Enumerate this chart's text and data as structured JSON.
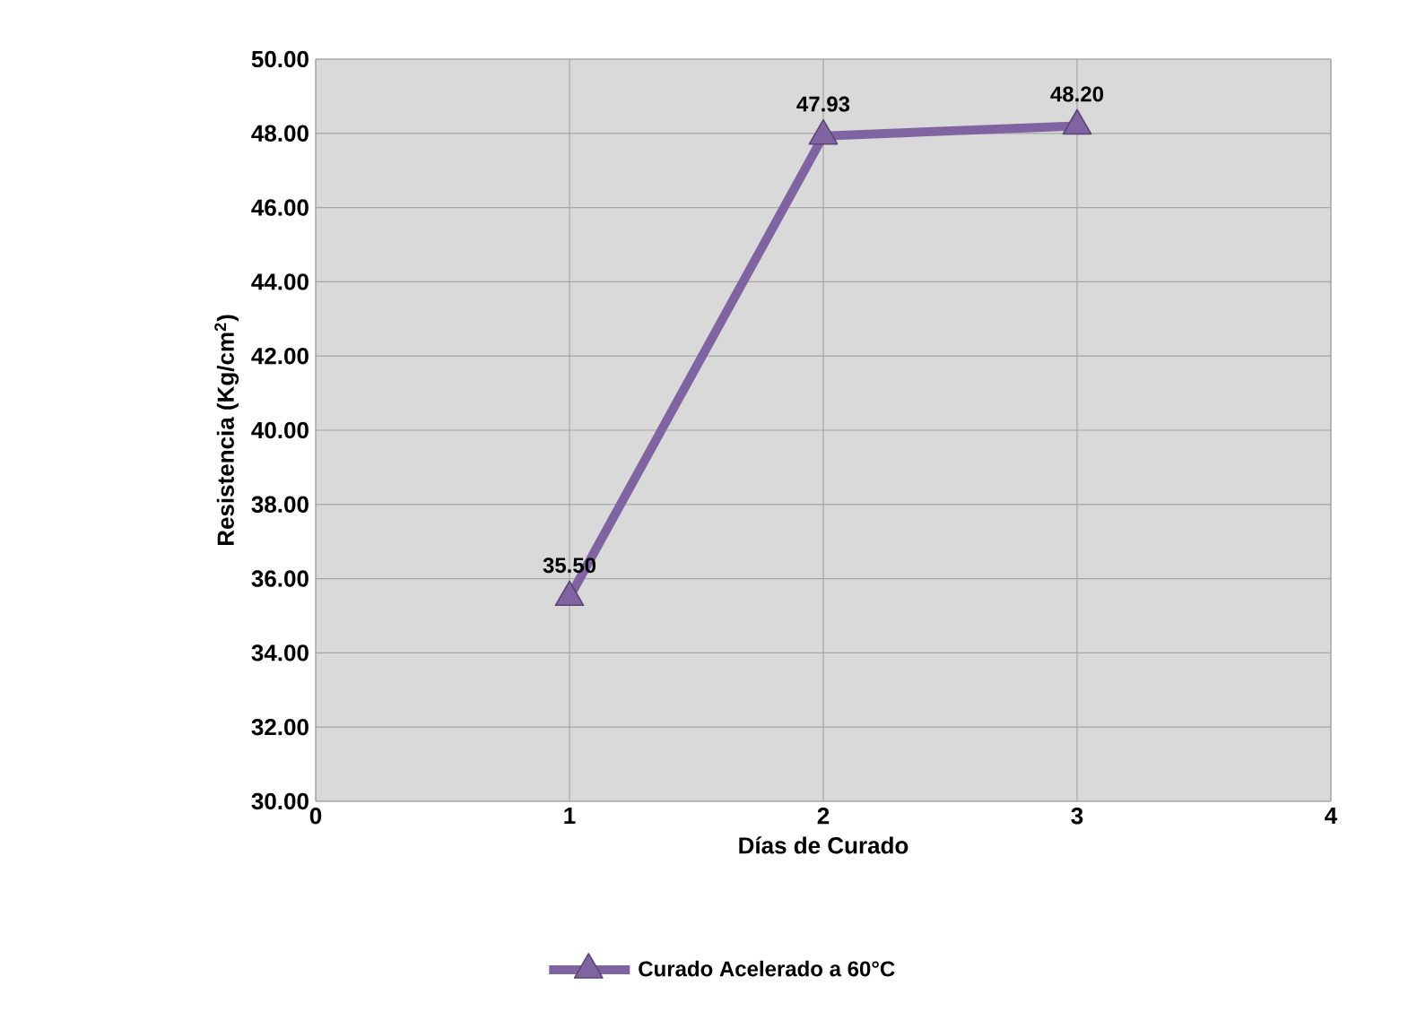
{
  "chart_data": {
    "type": "line",
    "xlabel": "Días de Curado",
    "ylabel": "Resistencia (Kg/cm$^{2}$)",
    "x": [
      1,
      2,
      3
    ],
    "series": [
      {
        "name": "Curado Acelerado a 60°C",
        "color": "#8064a2",
        "values": [
          35.5,
          47.93,
          48.2
        ],
        "value_labels": [
          "35.50",
          "47.93",
          "48.20"
        ]
      }
    ],
    "xlim": [
      0,
      4
    ],
    "xticks": [
      0,
      1,
      2,
      3,
      4
    ],
    "ylim": [
      30,
      50
    ],
    "yticks": [
      {
        "value": 30,
        "label": "30.00"
      },
      {
        "value": 32,
        "label": "32.00"
      },
      {
        "value": 34,
        "label": "34.00"
      },
      {
        "value": 36,
        "label": "36.00"
      },
      {
        "value": 38,
        "label": "38.00"
      },
      {
        "value": 40,
        "label": "40.00"
      },
      {
        "value": 42,
        "label": "42.00"
      },
      {
        "value": 44,
        "label": "44.00"
      },
      {
        "value": 46,
        "label": "46.00"
      },
      {
        "value": 48,
        "label": "48.00"
      },
      {
        "value": 50,
        "label": "50.00"
      }
    ],
    "grid": true,
    "legend": "bottom",
    "marker": "triangle",
    "line_style": "solid"
  }
}
